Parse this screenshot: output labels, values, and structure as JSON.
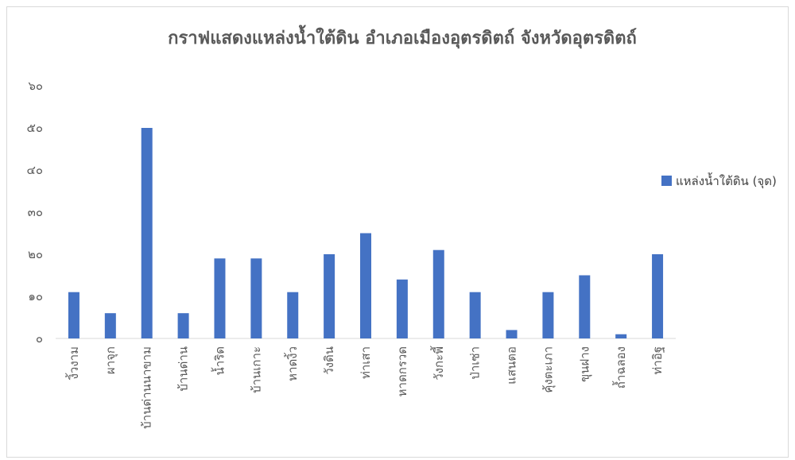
{
  "chart_data": {
    "type": "bar",
    "title": "กราฟแสดงแหล่งน้ำใต้ดิน อำเภอเมืองอุตรดิตถ์ จังหวัดอุตรดิตถ์",
    "xlabel": "",
    "ylabel": "",
    "ylim": [
      0,
      60
    ],
    "yticks": [
      0,
      10,
      20,
      30,
      40,
      50,
      60
    ],
    "ytick_labels": [
      "๐",
      "๑๐",
      "๒๐",
      "๓๐",
      "๔๐",
      "๕๐",
      "๖๐"
    ],
    "grid": false,
    "legend_position": "right",
    "categories": [
      "งิ้วงาม",
      "ผาจุก",
      "บ้านด่านนาขาม",
      "บ้านด่าน",
      "น้ำริด",
      "บ้านเกาะ",
      "หาดงิ้ว",
      "วังดิน",
      "ท่าเสา",
      "หาดกรวด",
      "วังกะพี้",
      "ป่าเซ่า",
      "แสนตอ",
      "คุ้งตะเภา",
      "ขุนฝาง",
      "ถ้ำฉลอง",
      "ท่าอิฐ"
    ],
    "series": [
      {
        "name": "แหล่งน้ำใต้ดิน (จุด)",
        "color": "#4472c4",
        "values": [
          11,
          6,
          50,
          6,
          19,
          19,
          11,
          20,
          25,
          14,
          21,
          11,
          2,
          11,
          15,
          1,
          20
        ]
      }
    ]
  }
}
